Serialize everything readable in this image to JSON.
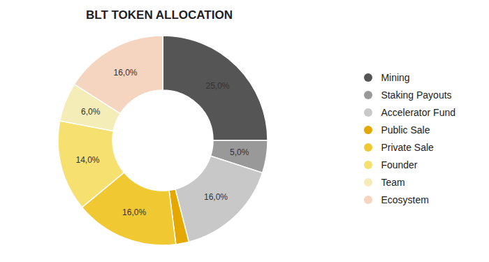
{
  "chart_data": {
    "type": "pie",
    "title": "BLT TOKEN ALLOCATION",
    "categories": [
      "Mining",
      "Staking Payouts",
      "Accelerator Fund",
      "Public Sale",
      "Private Sale",
      "Founder",
      "Team",
      "Ecosystem"
    ],
    "values": [
      25.0,
      5.0,
      16.0,
      2.0,
      16.0,
      14.0,
      6.0,
      16.0
    ],
    "value_labels": [
      "25,0%",
      "5,0%",
      "16,0%",
      null,
      "16,0%",
      "14,0%",
      "6,0%",
      "16,0%"
    ],
    "colors": [
      "#555555",
      "#999999",
      "#c8c8c8",
      "#e5a800",
      "#f0c832",
      "#f5e070",
      "#f5edb8",
      "#f5d5bf"
    ],
    "data_labels": true,
    "legend": "right"
  }
}
